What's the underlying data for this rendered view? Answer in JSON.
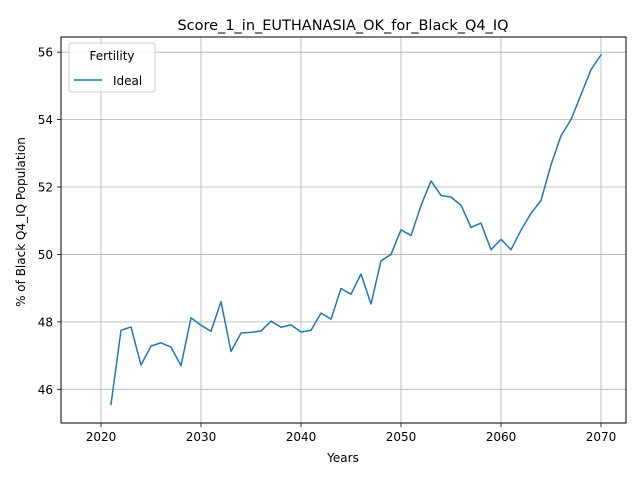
{
  "chart_data": {
    "type": "line",
    "title": "Score_1_in_EUTHANASIA_OK_for_Black_Q4_IQ",
    "xlabel": "Years",
    "ylabel": "% of Black Q4_IQ Population",
    "xlim": [
      2016,
      2072.5
    ],
    "ylim": [
      45.0,
      56.45
    ],
    "xticks": [
      2020,
      2030,
      2040,
      2050,
      2060,
      2070
    ],
    "yticks": [
      46,
      48,
      50,
      52,
      54,
      56
    ],
    "xtick_labels": [
      "2020",
      "2030",
      "2040",
      "2050",
      "2060",
      "2070"
    ],
    "ytick_labels": [
      "46",
      "48",
      "50",
      "52",
      "54",
      "56"
    ],
    "grid": true,
    "legend": {
      "title": "Fertility",
      "placement": "top-left"
    },
    "series": [
      {
        "name": "Ideal",
        "color": "#1f77b4",
        "x": [
          2021,
          2022,
          2023,
          2024,
          2025,
          2026,
          2027,
          2028,
          2029,
          2030,
          2031,
          2032,
          2033,
          2034,
          2035,
          2036,
          2037,
          2038,
          2039,
          2040,
          2041,
          2042,
          2043,
          2044,
          2045,
          2046,
          2047,
          2048,
          2049,
          2050,
          2051,
          2052,
          2053,
          2054,
          2055,
          2056,
          2057,
          2058,
          2059,
          2060,
          2061,
          2062,
          2063,
          2064,
          2065,
          2066,
          2067,
          2068,
          2069,
          2070
        ],
        "y": [
          45.55,
          47.75,
          47.85,
          46.72,
          47.28,
          47.38,
          47.25,
          46.7,
          48.12,
          47.9,
          47.72,
          48.6,
          47.12,
          47.67,
          47.69,
          47.73,
          48.02,
          47.84,
          47.91,
          47.7,
          47.75,
          48.26,
          48.08,
          48.99,
          48.82,
          49.42,
          48.53,
          49.81,
          50.0,
          50.73,
          50.56,
          51.45,
          52.18,
          51.75,
          51.7,
          51.46,
          50.8,
          50.93,
          50.14,
          50.45,
          50.14,
          50.72,
          51.22,
          51.6,
          52.66,
          53.52,
          54.0,
          54.74,
          55.48,
          55.92
        ]
      }
    ]
  }
}
